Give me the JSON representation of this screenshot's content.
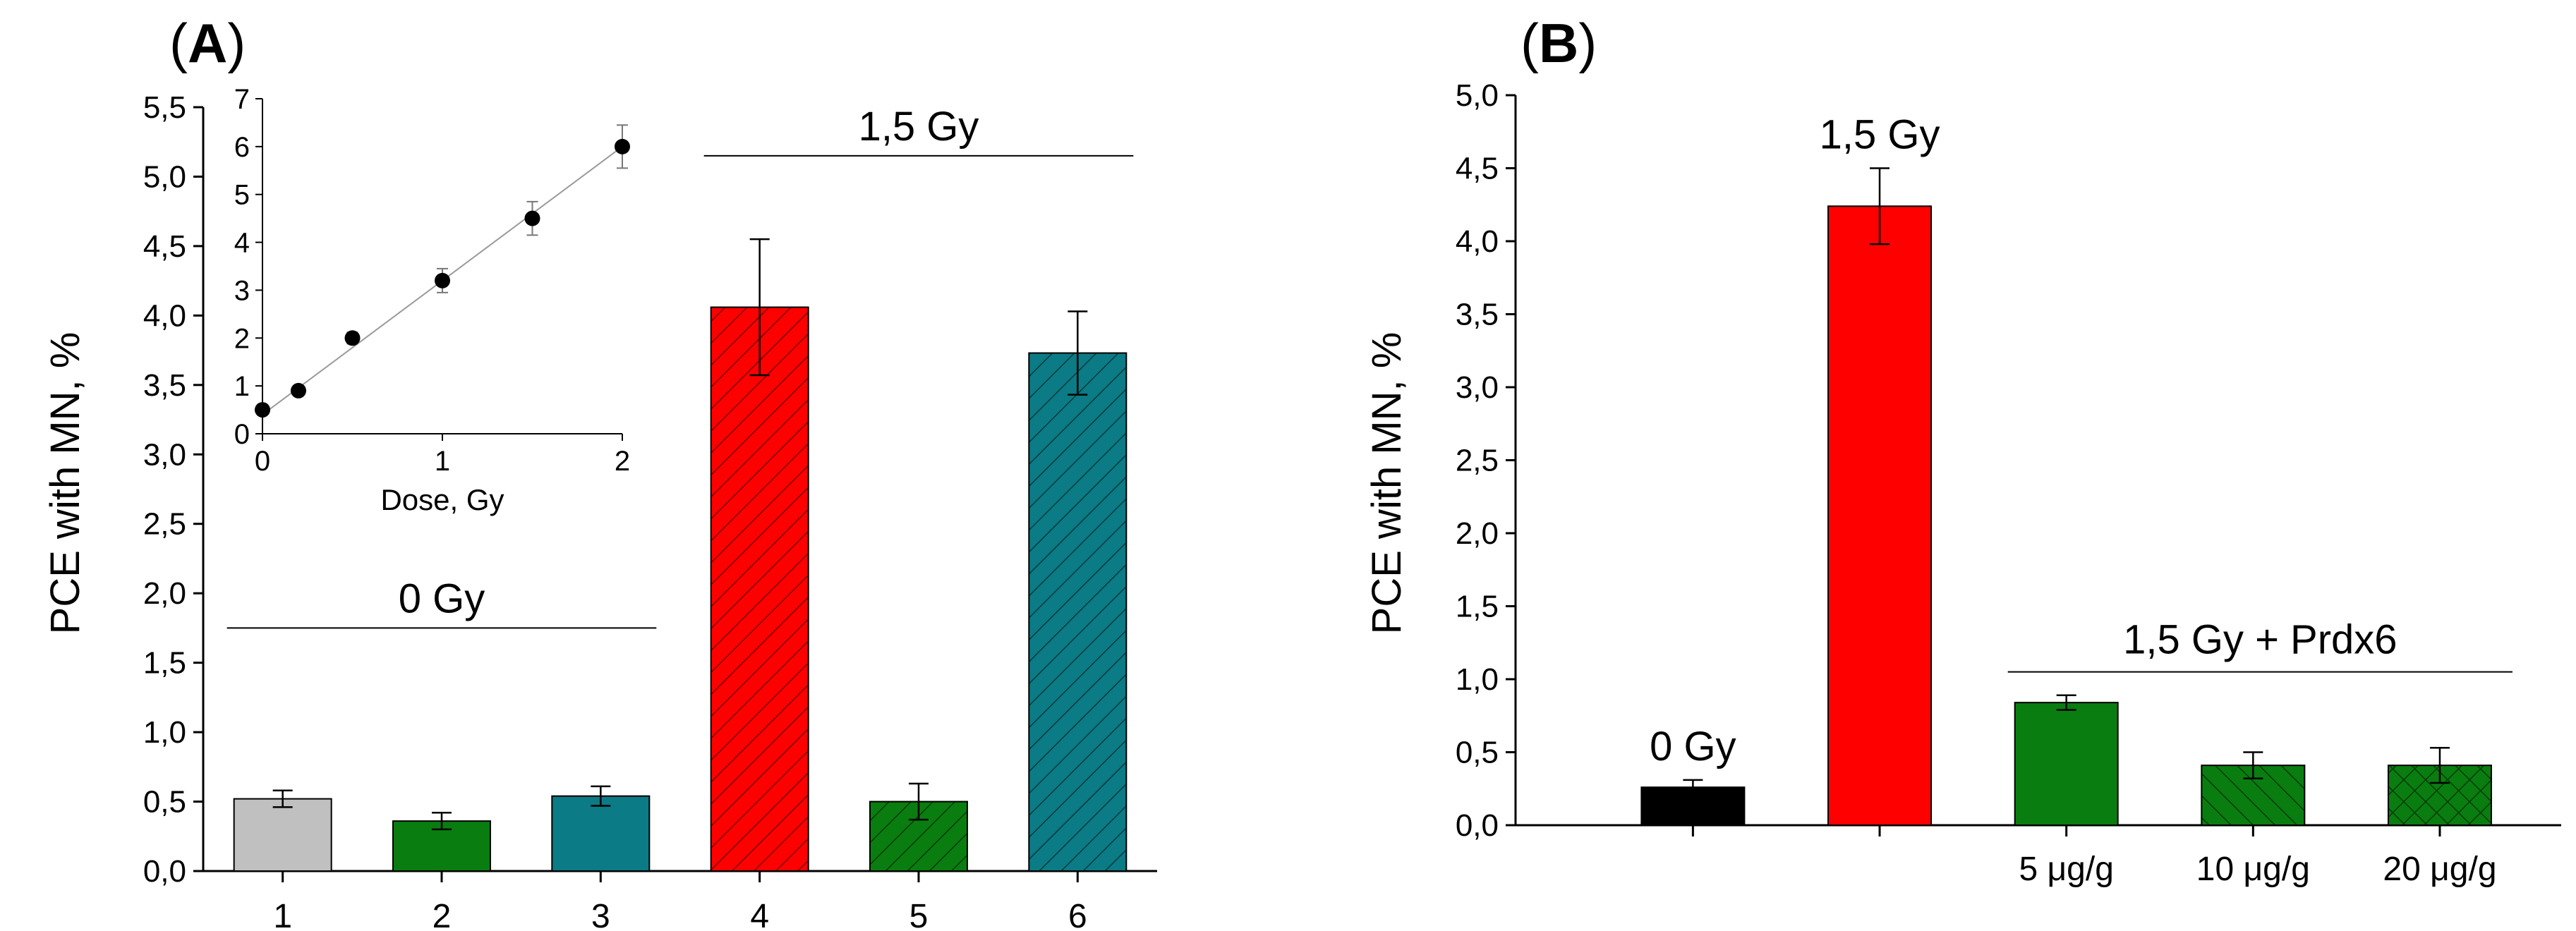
{
  "chart_data": [
    {
      "panel": "A",
      "type": "bar",
      "ylabel": "PCE with MN, %",
      "ylim": [
        0,
        5.5
      ],
      "yticks": [
        "0,0",
        "0,5",
        "1,0",
        "1,5",
        "2,0",
        "2,5",
        "3,0",
        "3,5",
        "4,0",
        "4,5",
        "5,0",
        "5,5"
      ],
      "categories": [
        "1",
        "2",
        "3",
        "4",
        "5",
        "6"
      ],
      "values": [
        0.52,
        0.36,
        0.54,
        4.06,
        0.5,
        3.73
      ],
      "errors": [
        0.06,
        0.06,
        0.07,
        0.49,
        0.13,
        0.3
      ],
      "colors": [
        "#c0c0c0",
        "#0a7d10",
        "#0b7b85",
        "#ff0000",
        "#0a7d10",
        "#0b7b85"
      ],
      "hatched": [
        false,
        false,
        false,
        true,
        true,
        true
      ],
      "group_labels": [
        {
          "text": "0 Gy",
          "from": 0,
          "to": 2
        },
        {
          "text": "1,5 Gy",
          "from": 3,
          "to": 5
        }
      ],
      "inset": {
        "type": "scatter",
        "xlabel": "Dose, Gy",
        "xlim": [
          0,
          2
        ],
        "ylim": [
          0,
          7
        ],
        "xticks": [
          "0",
          "1",
          "2"
        ],
        "yticks": [
          "0",
          "1",
          "2",
          "3",
          "4",
          "5",
          "6",
          "7"
        ],
        "x": [
          0,
          0.2,
          0.5,
          1.0,
          1.5,
          2.0
        ],
        "y": [
          0.5,
          0.9,
          2.0,
          3.2,
          4.5,
          6.0
        ],
        "errors": [
          0.05,
          0.1,
          0.12,
          0.25,
          0.35,
          0.45
        ],
        "fit": {
          "x0": 0,
          "y0": 0.4,
          "x1": 2,
          "y1": 6.0
        }
      }
    },
    {
      "panel": "B",
      "type": "bar",
      "ylabel": "PCE with MN, %",
      "ylim": [
        0,
        5.0
      ],
      "yticks": [
        "0,0",
        "0,5",
        "1,0",
        "1,5",
        "2,0",
        "2,5",
        "3,0",
        "3,5",
        "4,0",
        "4,5",
        "5,0"
      ],
      "categories": [
        "",
        "",
        "5 μg/g",
        "10 μg/g",
        "20 μg/g"
      ],
      "values": [
        0.26,
        4.24,
        0.84,
        0.41,
        0.41
      ],
      "errors": [
        0.05,
        0.26,
        0.05,
        0.09,
        0.12
      ],
      "colors": [
        "#000000",
        "#ff0000",
        "#0a7d10",
        "#0a7d10",
        "#0a7d10"
      ],
      "hatched": [
        false,
        false,
        false,
        "diag",
        "cross"
      ],
      "bar_labels": [
        "0 Gy",
        "1,5 Gy",
        "",
        "",
        ""
      ],
      "group_labels": [
        {
          "text": "1,5 Gy + Prdx6",
          "from": 2,
          "to": 4
        }
      ]
    }
  ]
}
